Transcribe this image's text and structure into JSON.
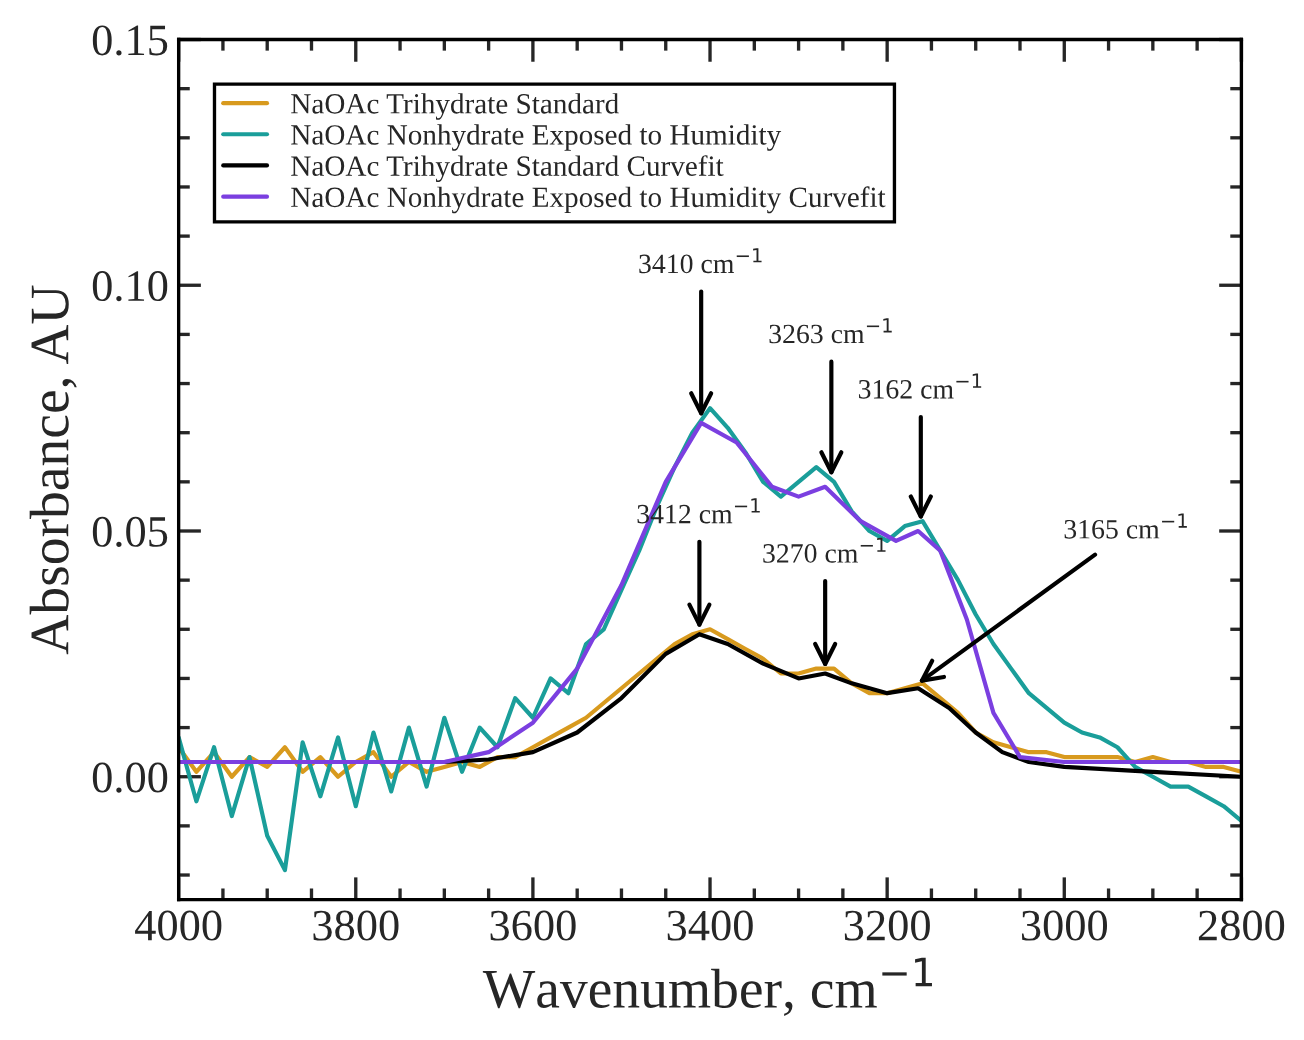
{
  "chart_data": {
    "type": "line",
    "xlabel": "Wavenumber, cm$^{−1}$",
    "ylabel": "Absorbance, AU",
    "xlim": [
      4000,
      2800
    ],
    "xticks": [
      4000,
      3800,
      3600,
      3400,
      3200,
      3000,
      2800
    ],
    "ylim": [
      -0.025,
      0.15
    ],
    "yticks": [
      {
        "value": 0,
        "label": "0.00"
      },
      {
        "value": 0.05,
        "label": "0.05"
      },
      {
        "value": 0.1,
        "label": "0.10"
      },
      {
        "value": 0.15,
        "label": "0.15"
      }
    ],
    "grid": false,
    "legend": "top left",
    "marker": "none",
    "line_style": "solid",
    "series": [
      {
        "name": "NaOAc Trihydrate Standard",
        "color": "#d89a1e",
        "x": [
          4000,
          3980,
          3960,
          3940,
          3920,
          3900,
          3880,
          3860,
          3840,
          3820,
          3800,
          3780,
          3760,
          3740,
          3720,
          3700,
          3680,
          3660,
          3640,
          3620,
          3600,
          3580,
          3560,
          3540,
          3520,
          3500,
          3480,
          3460,
          3440,
          3420,
          3400,
          3380,
          3360,
          3340,
          3320,
          3300,
          3280,
          3260,
          3240,
          3220,
          3200,
          3180,
          3160,
          3140,
          3120,
          3100,
          3080,
          3060,
          3040,
          3020,
          3000,
          2980,
          2960,
          2940,
          2920,
          2900,
          2880,
          2860,
          2840,
          2820,
          2800
        ],
        "values": [
          0.006,
          0.001,
          0.005,
          0.0,
          0.004,
          0.002,
          0.006,
          0.001,
          0.004,
          0.0,
          0.003,
          0.005,
          0.0,
          0.003,
          0.001,
          0.002,
          0.003,
          0.002,
          0.004,
          0.004,
          0.006,
          0.008,
          0.01,
          0.012,
          0.015,
          0.018,
          0.021,
          0.024,
          0.027,
          0.029,
          0.03,
          0.028,
          0.026,
          0.024,
          0.021,
          0.021,
          0.022,
          0.022,
          0.019,
          0.017,
          0.017,
          0.018,
          0.019,
          0.016,
          0.013,
          0.009,
          0.007,
          0.006,
          0.005,
          0.005,
          0.004,
          0.004,
          0.004,
          0.004,
          0.003,
          0.004,
          0.003,
          0.003,
          0.002,
          0.002,
          0.001
        ]
      },
      {
        "name": "NaOAc Nonhydrate Exposed to Humidity",
        "color": "#1a9e9a",
        "x": [
          4000,
          3980,
          3960,
          3940,
          3920,
          3900,
          3880,
          3860,
          3840,
          3820,
          3800,
          3780,
          3760,
          3740,
          3720,
          3700,
          3680,
          3660,
          3640,
          3620,
          3600,
          3580,
          3560,
          3540,
          3520,
          3500,
          3480,
          3460,
          3440,
          3420,
          3400,
          3380,
          3360,
          3340,
          3320,
          3300,
          3280,
          3260,
          3240,
          3220,
          3200,
          3180,
          3160,
          3140,
          3120,
          3100,
          3080,
          3060,
          3040,
          3020,
          3000,
          2980,
          2960,
          2940,
          2920,
          2900,
          2880,
          2860,
          2840,
          2820,
          2800
        ],
        "values": [
          0.008,
          -0.005,
          0.006,
          -0.008,
          0.004,
          -0.012,
          -0.019,
          0.007,
          -0.004,
          0.008,
          -0.006,
          0.009,
          -0.003,
          0.01,
          -0.002,
          0.012,
          0.001,
          0.01,
          0.006,
          0.016,
          0.012,
          0.02,
          0.017,
          0.027,
          0.03,
          0.038,
          0.046,
          0.055,
          0.063,
          0.07,
          0.075,
          0.071,
          0.066,
          0.06,
          0.057,
          0.06,
          0.063,
          0.06,
          0.054,
          0.05,
          0.048,
          0.051,
          0.052,
          0.046,
          0.04,
          0.033,
          0.027,
          0.022,
          0.017,
          0.014,
          0.011,
          0.009,
          0.008,
          0.006,
          0.002,
          0.0,
          -0.002,
          -0.002,
          -0.004,
          -0.006,
          -0.009
        ]
      },
      {
        "name": "NaOAc Trihydrate Standard Curvefit",
        "color": "#000000",
        "x": [
          4000,
          3700,
          3650,
          3600,
          3550,
          3500,
          3450,
          3412,
          3380,
          3340,
          3300,
          3270,
          3240,
          3200,
          3165,
          3130,
          3100,
          3070,
          3040,
          3000,
          2900,
          2800
        ],
        "values": [
          0.003,
          0.003,
          0.0035,
          0.005,
          0.009,
          0.016,
          0.025,
          0.029,
          0.027,
          0.023,
          0.02,
          0.021,
          0.019,
          0.017,
          0.018,
          0.014,
          0.009,
          0.005,
          0.003,
          0.002,
          0.001,
          0.0
        ]
      },
      {
        "name": "NaOAc Nonhydrate Exposed to Humidity Curvefit",
        "color": "#7b3fe0",
        "x": [
          4000,
          3700,
          3650,
          3600,
          3550,
          3500,
          3450,
          3410,
          3370,
          3330,
          3300,
          3270,
          3230,
          3190,
          3165,
          3140,
          3110,
          3080,
          3050,
          3000,
          2800
        ],
        "values": [
          0.003,
          0.003,
          0.005,
          0.011,
          0.022,
          0.039,
          0.06,
          0.072,
          0.068,
          0.059,
          0.057,
          0.059,
          0.052,
          0.048,
          0.05,
          0.046,
          0.032,
          0.013,
          0.004,
          0.003,
          0.003
        ]
      }
    ],
    "annotations": [
      {
        "text": "3410 cm$^{−1}$",
        "x": 3410,
        "y": 0.073
      },
      {
        "text": "3263 cm$^{−1}$",
        "x": 3263,
        "y": 0.061
      },
      {
        "text": "3162 cm$^{−1}$",
        "x": 3162,
        "y": 0.052
      },
      {
        "text": "3412 cm$^{−1}$",
        "x": 3412,
        "y": 0.03
      },
      {
        "text": "3270 cm$^{−1}$",
        "x": 3270,
        "y": 0.022
      },
      {
        "text": "3165 cm$^{−1}$",
        "x": 3165,
        "y": 0.019
      }
    ]
  }
}
